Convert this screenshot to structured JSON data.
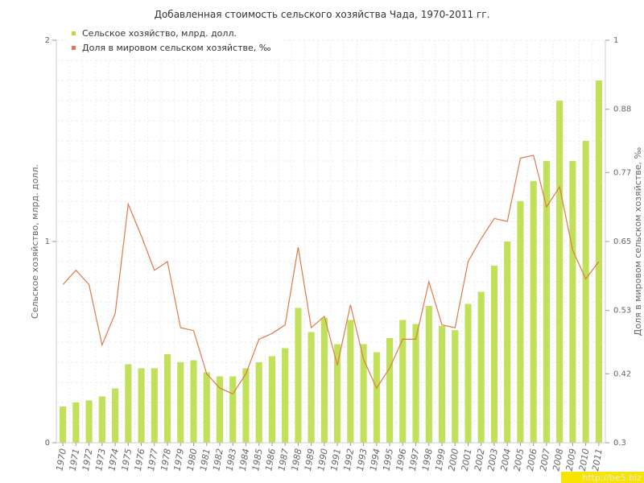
{
  "chart_data": {
    "type": "bar",
    "title": "Добавленная стоимость сельского хозяйства Чада, 1970-2011 гг.",
    "ylabel_left": "Сельское хозяйство, млрд. долл.",
    "ylabel_right": "Доля в мировом сельском хозяйстве, ‰",
    "ylim_left": [
      0,
      2
    ],
    "ylim_right": [
      0.3,
      1
    ],
    "yticks_left": [
      "0",
      "1",
      "2"
    ],
    "yticks_right": [
      "0.3",
      "0.42",
      "0.53",
      "0.65",
      "0.77",
      "0.88",
      "1"
    ],
    "grid": true,
    "legend_position": "top-left",
    "categories": [
      "1970",
      "1971",
      "1972",
      "1973",
      "1974",
      "1975",
      "1976",
      "1977",
      "1978",
      "1979",
      "1980",
      "1981",
      "1982",
      "1983",
      "1984",
      "1985",
      "1986",
      "1987",
      "1988",
      "1989",
      "1990",
      "1991",
      "1992",
      "1993",
      "1994",
      "1995",
      "1996",
      "1997",
      "1998",
      "1999",
      "2000",
      "2001",
      "2002",
      "2003",
      "2004",
      "2005",
      "2006",
      "2007",
      "2008",
      "2009",
      "2010",
      "2011"
    ],
    "series": [
      {
        "name": "Сельское хозяйство, млрд. долл.",
        "type": "bar",
        "axis": "left",
        "color": "#b5dc3c",
        "values": [
          0.18,
          0.2,
          0.21,
          0.23,
          0.27,
          0.39,
          0.37,
          0.37,
          0.44,
          0.4,
          0.41,
          0.35,
          0.33,
          0.33,
          0.37,
          0.4,
          0.43,
          0.47,
          0.67,
          0.55,
          0.62,
          0.49,
          0.61,
          0.49,
          0.45,
          0.52,
          0.61,
          0.59,
          0.68,
          0.58,
          0.56,
          0.69,
          0.75,
          0.88,
          1.0,
          1.2,
          1.3,
          1.4,
          1.7,
          1.4,
          1.5,
          1.8
        ]
      },
      {
        "name": "Доля в мировом сельском хозяйстве, ‰",
        "type": "line",
        "axis": "right",
        "color": "#e07a4a",
        "values": [
          0.575,
          0.6,
          0.575,
          0.47,
          0.525,
          0.715,
          0.66,
          0.6,
          0.615,
          0.5,
          0.495,
          0.42,
          0.395,
          0.385,
          0.42,
          0.48,
          0.49,
          0.505,
          0.64,
          0.5,
          0.52,
          0.435,
          0.54,
          0.445,
          0.395,
          0.43,
          0.48,
          0.48,
          0.58,
          0.505,
          0.5,
          0.615,
          0.655,
          0.69,
          0.685,
          0.795,
          0.8,
          0.71,
          0.745,
          0.635,
          0.585,
          0.615
        ]
      }
    ]
  },
  "watermark": "http://be5.biz"
}
